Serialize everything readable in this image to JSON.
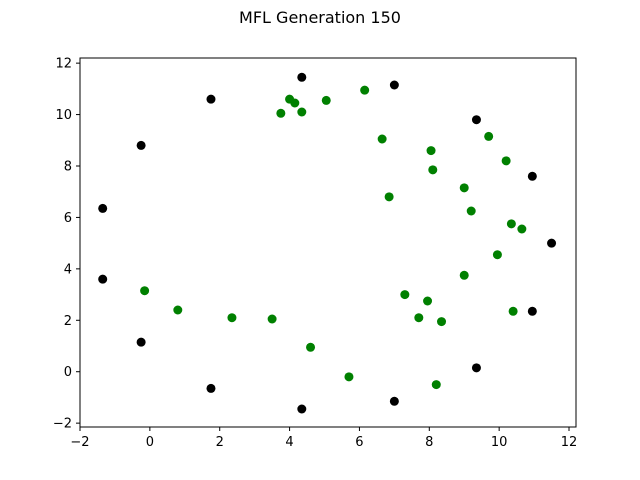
{
  "chart_data": {
    "type": "scatter",
    "title": "MFL Generation 150",
    "xlabel": "",
    "ylabel": "",
    "xlim": [
      -2,
      12.2
    ],
    "ylim": [
      -2.15,
      12.2
    ],
    "xticks": [
      -2,
      0,
      2,
      4,
      6,
      8,
      10,
      12
    ],
    "yticks": [
      -2,
      0,
      2,
      4,
      6,
      8,
      10,
      12
    ],
    "grid": false,
    "series": [
      {
        "color": "#000000",
        "points": [
          {
            "x": 4.35,
            "y": 11.45
          },
          {
            "x": 7.0,
            "y": 11.15
          },
          {
            "x": 1.75,
            "y": 10.6
          },
          {
            "x": -0.25,
            "y": 8.8
          },
          {
            "x": 9.35,
            "y": 9.8
          },
          {
            "x": 10.95,
            "y": 7.6
          },
          {
            "x": -1.35,
            "y": 6.35
          },
          {
            "x": 11.5,
            "y": 5.0
          },
          {
            "x": -1.35,
            "y": 3.6
          },
          {
            "x": 10.95,
            "y": 2.35
          },
          {
            "x": -0.25,
            "y": 1.15
          },
          {
            "x": 9.35,
            "y": 0.15
          },
          {
            "x": 1.75,
            "y": -0.65
          },
          {
            "x": 7.0,
            "y": -1.15
          },
          {
            "x": 4.35,
            "y": -1.45
          }
        ]
      },
      {
        "color": "#008000",
        "points": [
          {
            "x": 3.75,
            "y": 10.05
          },
          {
            "x": 4.0,
            "y": 10.6
          },
          {
            "x": 4.15,
            "y": 10.45
          },
          {
            "x": 4.35,
            "y": 10.1
          },
          {
            "x": 5.05,
            "y": 10.55
          },
          {
            "x": 6.15,
            "y": 10.95
          },
          {
            "x": 6.65,
            "y": 9.05
          },
          {
            "x": 8.05,
            "y": 8.6
          },
          {
            "x": 8.1,
            "y": 7.85
          },
          {
            "x": 9.7,
            "y": 9.15
          },
          {
            "x": 10.2,
            "y": 8.2
          },
          {
            "x": 6.85,
            "y": 6.8
          },
          {
            "x": 9.0,
            "y": 7.15
          },
          {
            "x": 9.2,
            "y": 6.25
          },
          {
            "x": 10.35,
            "y": 5.75
          },
          {
            "x": 10.65,
            "y": 5.55
          },
          {
            "x": 9.95,
            "y": 4.55
          },
          {
            "x": 9.0,
            "y": 3.75
          },
          {
            "x": -0.15,
            "y": 3.15
          },
          {
            "x": 0.8,
            "y": 2.4
          },
          {
            "x": 2.35,
            "y": 2.1
          },
          {
            "x": 3.5,
            "y": 2.05
          },
          {
            "x": 4.6,
            "y": 0.95
          },
          {
            "x": 7.3,
            "y": 3.0
          },
          {
            "x": 7.95,
            "y": 2.75
          },
          {
            "x": 7.7,
            "y": 2.1
          },
          {
            "x": 8.35,
            "y": 1.95
          },
          {
            "x": 10.4,
            "y": 2.35
          },
          {
            "x": 5.7,
            "y": -0.2
          },
          {
            "x": 8.2,
            "y": -0.5
          }
        ]
      }
    ]
  }
}
